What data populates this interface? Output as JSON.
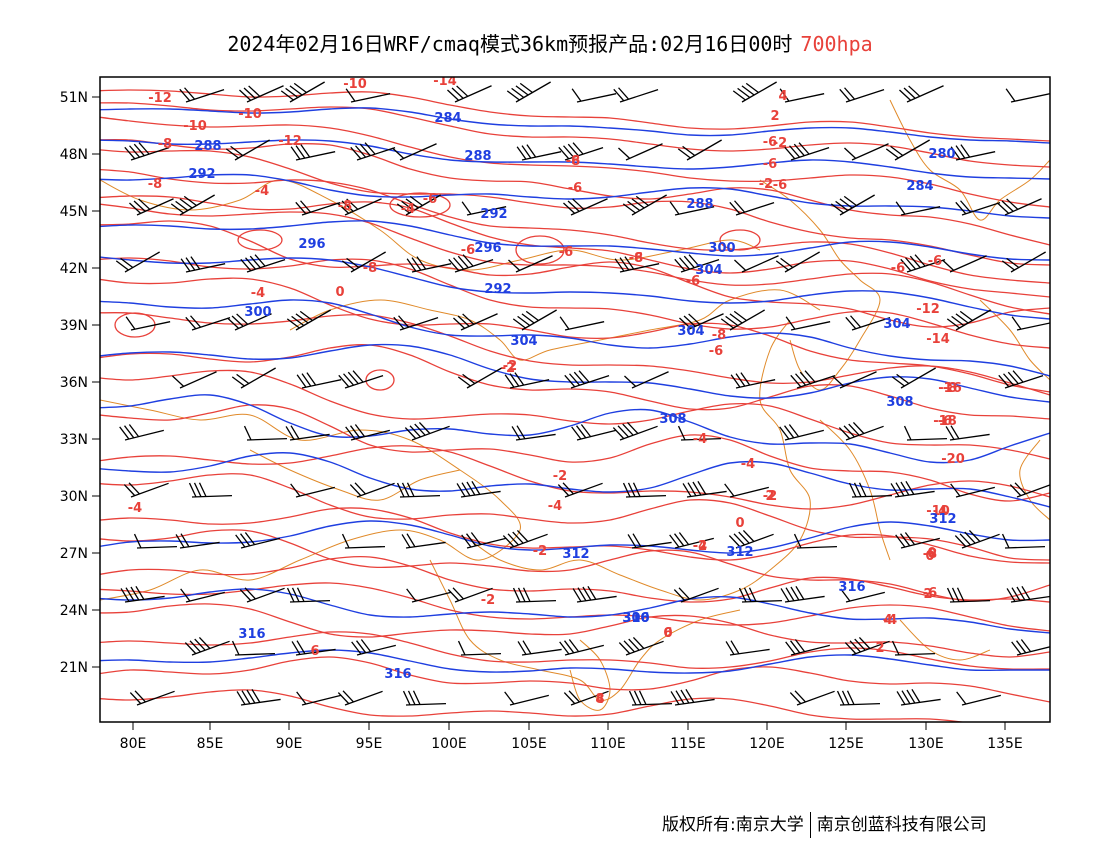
{
  "title": {
    "text": "2024年02月16日WRF/cmaq模式36km预报产品:02月16日00时",
    "level": "700hpa"
  },
  "axes": {
    "x_ticks": [
      "80E",
      "85E",
      "90E",
      "95E",
      "100E",
      "105E",
      "110E",
      "115E",
      "120E",
      "125E",
      "130E",
      "135E"
    ],
    "y_ticks": [
      "51N",
      "48N",
      "45N",
      "42N",
      "39N",
      "36N",
      "33N",
      "30N",
      "27N",
      "24N",
      "21N"
    ]
  },
  "colors": {
    "temperature": "#e8413a",
    "height": "#1f3fe0",
    "border": "#e08a2a",
    "wind": "#000000"
  },
  "temperature_labels": [
    "-12",
    "-14",
    "-10",
    "-10",
    "-12",
    "-10",
    "-8",
    "-8",
    "-6",
    "-4",
    "-6",
    "-6",
    "-6",
    "-8",
    "-4",
    "-8",
    "-8",
    "-8",
    "-4",
    "0",
    "-2",
    "-2",
    "-2",
    "-4",
    "-6",
    "-4",
    "-2",
    "0",
    "-2",
    "-4",
    "-2",
    "-4",
    "0",
    "2",
    "2",
    "4",
    "-6",
    "-6",
    "-6",
    "-6",
    "-6",
    "-12",
    "-14",
    "-16",
    "-18",
    "-20",
    "-10",
    "-8",
    "-6",
    "-4",
    "-2",
    "0",
    "2",
    "4",
    "6",
    "-4",
    "-2",
    "-2",
    "-6",
    "-6",
    "-6",
    "-8",
    "-8",
    "-6",
    "-4",
    "0",
    "2",
    "4",
    "6",
    "8"
  ],
  "height_labels": [
    "284",
    "288",
    "292",
    "296",
    "300",
    "304",
    "304",
    "304",
    "308",
    "312",
    "312",
    "316",
    "316",
    "316",
    "300",
    "292",
    "288",
    "280",
    "284",
    "288",
    "292",
    "296",
    "300",
    "304",
    "308",
    "312",
    "316"
  ],
  "footer": {
    "left": "版权所有:南京大学",
    "right": "南京创蓝科技有限公司"
  }
}
